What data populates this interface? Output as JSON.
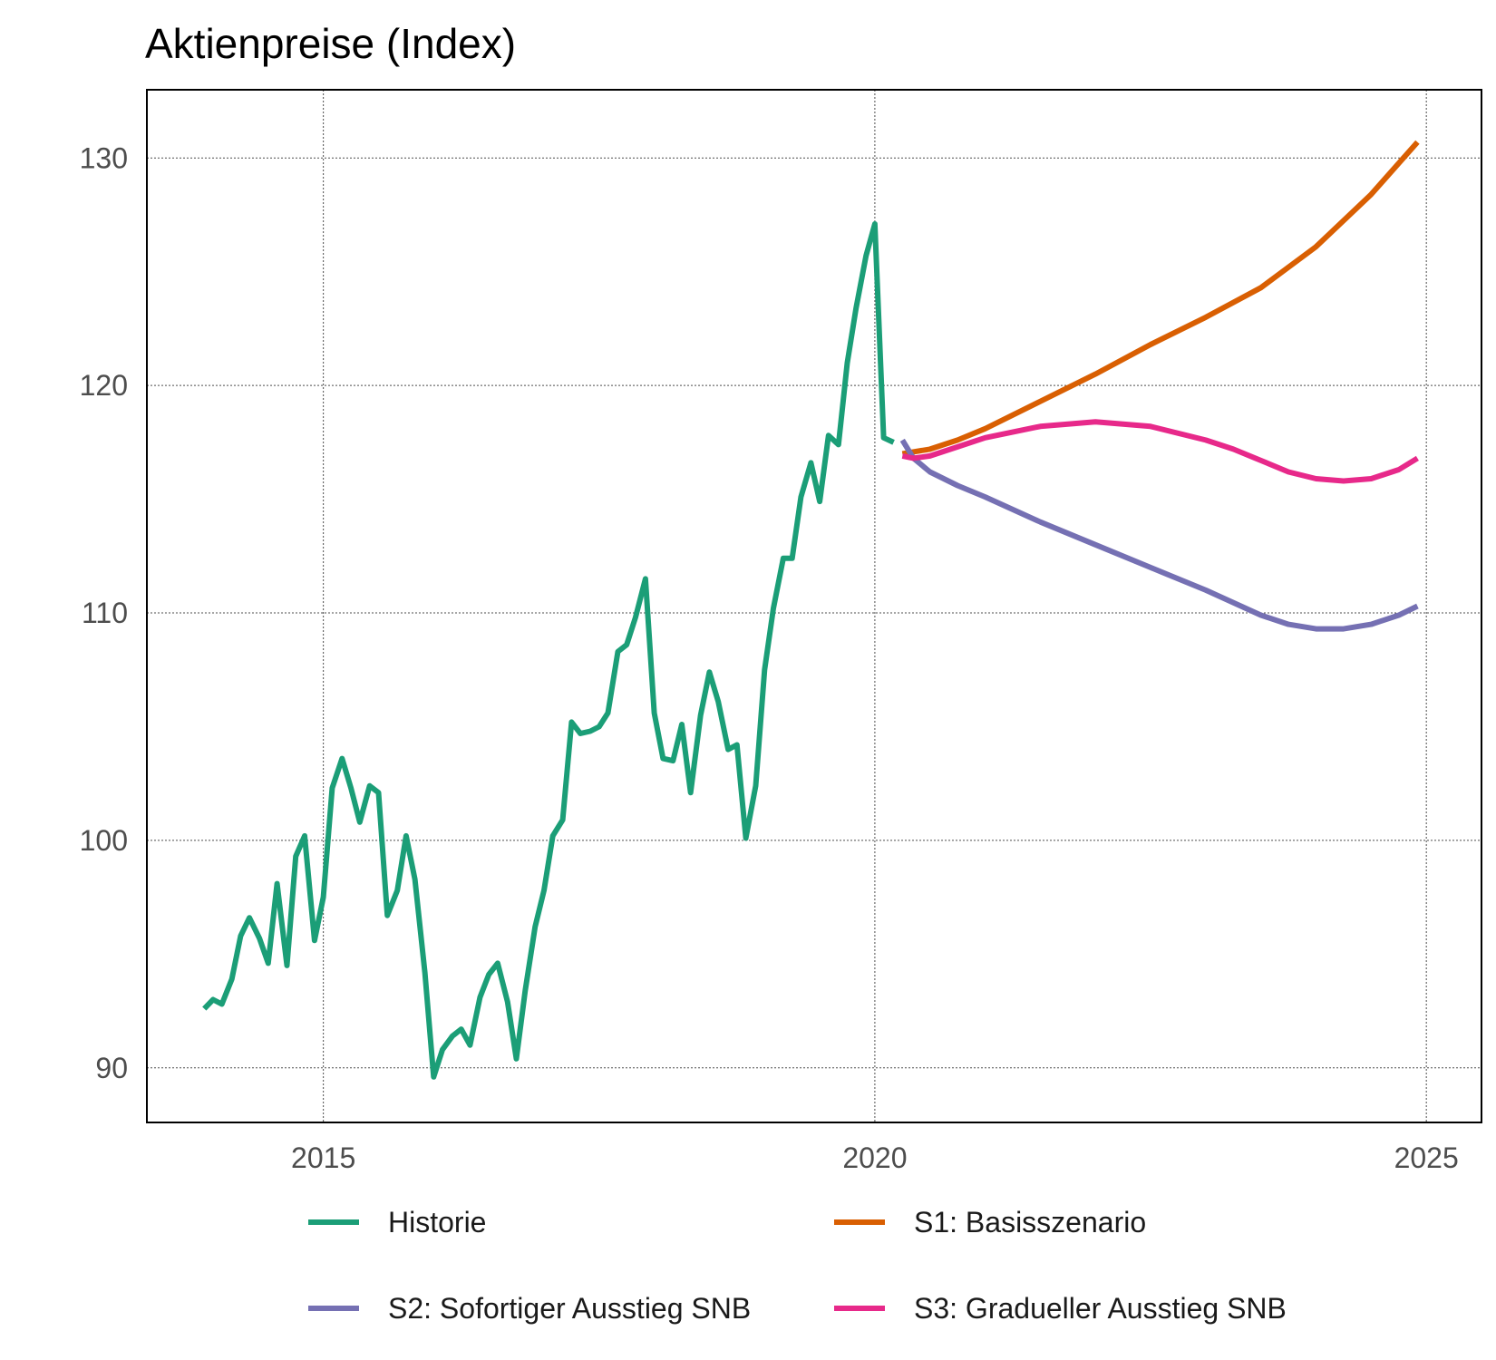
{
  "chart_data": {
    "type": "line",
    "title": "Aktienpreise (Index)",
    "xlabel": "",
    "ylabel": "",
    "xlim": [
      2013.4,
      2025.5
    ],
    "ylim": [
      87.6,
      133.0
    ],
    "x_ticks": [
      2015,
      2020,
      2025
    ],
    "y_ticks": [
      90,
      100,
      110,
      120,
      130
    ],
    "grid": true,
    "legend_position": "bottom",
    "series": [
      {
        "name": "Historie",
        "color": "#1b9e77",
        "x": [
          2013.92,
          2014.0,
          2014.08,
          2014.17,
          2014.25,
          2014.33,
          2014.42,
          2014.5,
          2014.58,
          2014.67,
          2014.75,
          2014.83,
          2014.92,
          2015.0,
          2015.08,
          2015.17,
          2015.25,
          2015.33,
          2015.42,
          2015.5,
          2015.58,
          2015.67,
          2015.75,
          2015.83,
          2015.92,
          2016.0,
          2016.08,
          2016.17,
          2016.25,
          2016.33,
          2016.42,
          2016.5,
          2016.58,
          2016.67,
          2016.75,
          2016.83,
          2016.92,
          2017.0,
          2017.08,
          2017.17,
          2017.25,
          2017.33,
          2017.42,
          2017.5,
          2017.58,
          2017.67,
          2017.75,
          2017.83,
          2017.92,
          2018.0,
          2018.08,
          2018.17,
          2018.25,
          2018.33,
          2018.42,
          2018.5,
          2018.58,
          2018.67,
          2018.75,
          2018.83,
          2018.92,
          2019.0,
          2019.08,
          2019.17,
          2019.25,
          2019.33,
          2019.42,
          2019.5,
          2019.58,
          2019.67,
          2019.75,
          2019.83,
          2019.92,
          2020.0,
          2020.08,
          2020.17
        ],
        "y": [
          92.6,
          93.0,
          92.8,
          93.9,
          95.8,
          96.6,
          95.7,
          94.6,
          98.1,
          94.5,
          99.3,
          100.2,
          95.6,
          97.5,
          102.3,
          103.6,
          102.3,
          100.8,
          102.4,
          102.1,
          96.7,
          97.8,
          100.2,
          98.3,
          94.2,
          89.6,
          90.8,
          91.4,
          91.7,
          91.0,
          93.1,
          94.1,
          94.6,
          92.9,
          90.4,
          93.4,
          96.2,
          97.8,
          100.2,
          100.9,
          105.2,
          104.7,
          104.8,
          105.0,
          105.6,
          108.3,
          108.6,
          109.8,
          111.5,
          105.6,
          103.6,
          103.5,
          105.1,
          102.1,
          105.5,
          107.4,
          106.1,
          104.0,
          104.2,
          100.1,
          102.4,
          107.5,
          110.2,
          112.4,
          112.4,
          115.1,
          116.6,
          114.9,
          117.8,
          117.4,
          121.0,
          123.4,
          125.7,
          127.1,
          117.7,
          117.5
        ]
      },
      {
        "name": "S1: Basisszenario",
        "color": "#d95f02",
        "x": [
          2020.25,
          2020.5,
          2020.75,
          2021.0,
          2021.5,
          2022.0,
          2022.5,
          2023.0,
          2023.5,
          2024.0,
          2024.5,
          2024.92
        ],
        "y": [
          117.0,
          117.2,
          117.6,
          118.1,
          119.3,
          120.5,
          121.8,
          123.0,
          124.3,
          126.1,
          128.4,
          130.7
        ]
      },
      {
        "name": "S2: Sofortiger Ausstieg SNB",
        "color": "#7570b3",
        "x": [
          2020.25,
          2020.35,
          2020.5,
          2020.75,
          2021.0,
          2021.5,
          2022.0,
          2022.5,
          2023.0,
          2023.5,
          2023.75,
          2024.0,
          2024.25,
          2024.5,
          2024.75,
          2024.92
        ],
        "y": [
          117.6,
          116.8,
          116.2,
          115.6,
          115.1,
          114.0,
          113.0,
          112.0,
          111.0,
          109.9,
          109.5,
          109.3,
          109.3,
          109.5,
          109.9,
          110.3
        ]
      },
      {
        "name": "S3: Gradueller Ausstieg SNB",
        "color": "#e7298a",
        "x": [
          2020.25,
          2020.35,
          2020.5,
          2020.75,
          2021.0,
          2021.5,
          2022.0,
          2022.5,
          2023.0,
          2023.25,
          2023.5,
          2023.75,
          2024.0,
          2024.25,
          2024.5,
          2024.75,
          2024.92
        ],
        "y": [
          116.9,
          116.8,
          116.9,
          117.3,
          117.7,
          118.2,
          118.4,
          118.2,
          117.6,
          117.2,
          116.7,
          116.2,
          115.9,
          115.8,
          115.9,
          116.3,
          116.8
        ]
      }
    ]
  }
}
